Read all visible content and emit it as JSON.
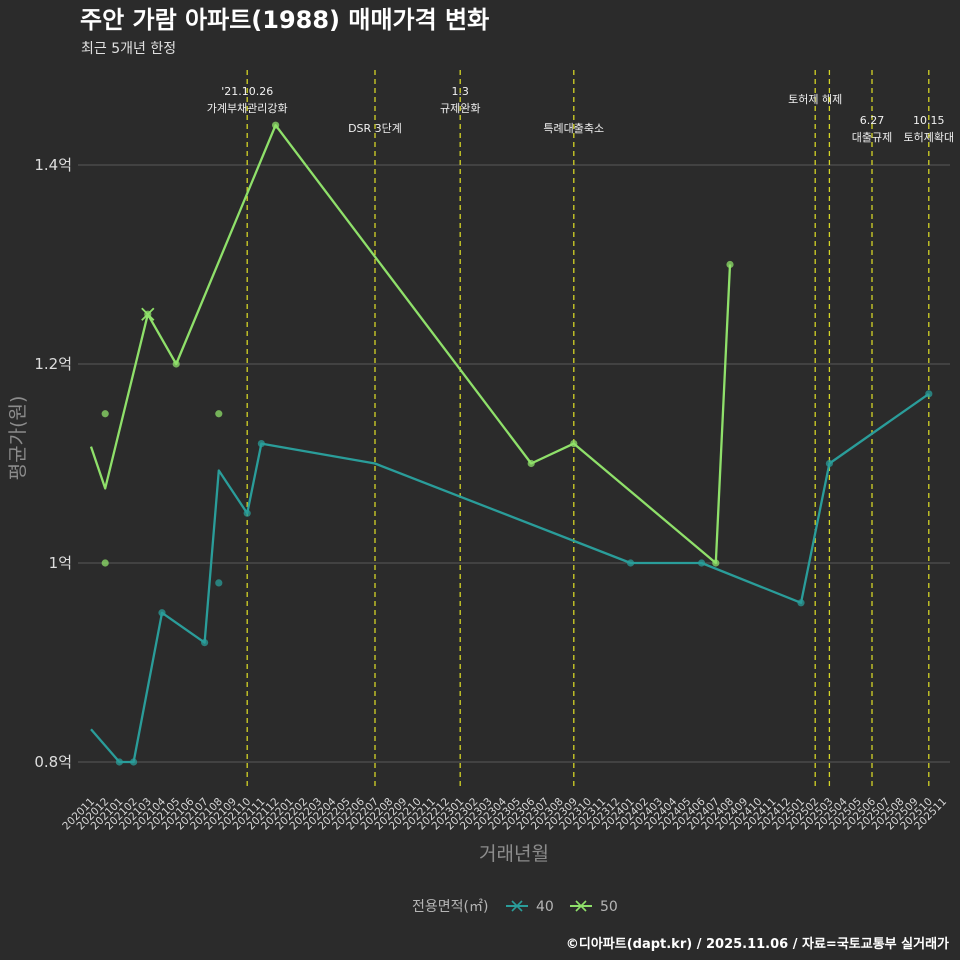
{
  "chart_data": {
    "type": "line",
    "title": "주안 가람 아파트(1988) 매매가격 변화",
    "subtitle": "최근 5개년 한정",
    "xlabel": "거래년월",
    "ylabel": "평균가(원)",
    "caption": "©디아파트(dapt.kr) / 2025.11.06 / 자료=국토교통부 실거래가",
    "legend_title": "전용면적(㎡)",
    "legend_position": "bottom",
    "ylim": [
      0.77,
      1.5
    ],
    "y_ticks": [
      0.8,
      1.0,
      1.2,
      1.4
    ],
    "y_tick_labels": [
      "0.8억",
      "1억",
      "1.2억",
      "1.4억"
    ],
    "categories": [
      "202011",
      "202012",
      "202101",
      "202102",
      "202103",
      "202104",
      "202105",
      "202106",
      "202107",
      "202108",
      "202109",
      "202110",
      "202111",
      "202112",
      "202201",
      "202202",
      "202203",
      "202204",
      "202205",
      "202206",
      "202207",
      "202208",
      "202209",
      "202210",
      "202211",
      "202212",
      "202301",
      "202302",
      "202303",
      "202304",
      "202305",
      "202306",
      "202307",
      "202308",
      "202309",
      "202310",
      "202311",
      "202312",
      "202401",
      "202402",
      "202403",
      "202404",
      "202405",
      "202406",
      "202407",
      "202408",
      "202409",
      "202410",
      "202411",
      "202412",
      "202501",
      "202502",
      "202503",
      "202504",
      "202505",
      "202506",
      "202507",
      "202508",
      "202509",
      "202510",
      "202511"
    ],
    "series": [
      {
        "name": "40",
        "color": "#2a9d9a",
        "line": [
          {
            "x": "202011",
            "y": 0.833
          },
          {
            "x": "202101",
            "y": 0.8
          },
          {
            "x": "202102",
            "y": 0.8
          },
          {
            "x": "202104",
            "y": 0.95
          },
          {
            "x": "202107",
            "y": 0.92
          },
          {
            "x": "202108",
            "y": 1.093
          },
          {
            "x": "202110",
            "y": 1.05
          },
          {
            "x": "202111",
            "y": 1.12
          },
          {
            "x": "202207",
            "y": 1.1
          },
          {
            "x": "202401",
            "y": 1.0
          },
          {
            "x": "202406",
            "y": 1.0
          },
          {
            "x": "202501",
            "y": 0.96
          },
          {
            "x": "202503",
            "y": 1.1
          },
          {
            "x": "202510",
            "y": 1.17
          }
        ],
        "points": [
          {
            "x": "202101",
            "y": 0.8
          },
          {
            "x": "202102",
            "y": 0.8
          },
          {
            "x": "202104",
            "y": 0.95
          },
          {
            "x": "202107",
            "y": 0.92
          },
          {
            "x": "202108",
            "y": 0.98
          },
          {
            "x": "202110",
            "y": 1.05
          },
          {
            "x": "202111",
            "y": 1.12
          },
          {
            "x": "202401",
            "y": 1.0
          },
          {
            "x": "202406",
            "y": 1.0
          },
          {
            "x": "202501",
            "y": 0.96
          },
          {
            "x": "202503",
            "y": 1.1
          },
          {
            "x": "202510",
            "y": 1.17
          }
        ]
      },
      {
        "name": "50",
        "color": "#8fe06a",
        "line": [
          {
            "x": "202011",
            "y": 1.117
          },
          {
            "x": "202012",
            "y": 1.075
          },
          {
            "x": "202103",
            "y": 1.25
          },
          {
            "x": "202105",
            "y": 1.2
          },
          {
            "x": "202112",
            "y": 1.44
          },
          {
            "x": "202306",
            "y": 1.1
          },
          {
            "x": "202309",
            "y": 1.12
          },
          {
            "x": "202407",
            "y": 1.0
          },
          {
            "x": "202408",
            "y": 1.3
          }
        ],
        "points": [
          {
            "x": "202012",
            "y": 1.15
          },
          {
            "x": "202012",
            "y": 1.0
          },
          {
            "x": "202103",
            "y": 1.25
          },
          {
            "x": "202105",
            "y": 1.2
          },
          {
            "x": "202108",
            "y": 1.15
          },
          {
            "x": "202112",
            "y": 1.44
          },
          {
            "x": "202306",
            "y": 1.1
          },
          {
            "x": "202309",
            "y": 1.12
          },
          {
            "x": "202407",
            "y": 1.0
          },
          {
            "x": "202408",
            "y": 1.3
          }
        ]
      }
    ],
    "events": [
      {
        "x": "202110",
        "lines": [
          "'21.10.26",
          "가계부채관리강화"
        ],
        "row": 0
      },
      {
        "x": "202207",
        "lines": [
          "DSR 3단계"
        ],
        "row": 2
      },
      {
        "x": "202301",
        "lines": [
          "1.3",
          "규제완화"
        ],
        "row": 0
      },
      {
        "x": "202309",
        "lines": [
          "특례대출축소"
        ],
        "row": 2
      },
      {
        "x": "202502",
        "lines": [
          "토허제 해제"
        ],
        "row": 1
      },
      {
        "x": "202503",
        "lines": [],
        "row": 1
      },
      {
        "x": "202506",
        "lines": [
          "6.27",
          "대출규제"
        ],
        "row": 1
      },
      {
        "x": "202510",
        "lines": [
          "10.15",
          "토허제확대"
        ],
        "row": 1
      }
    ],
    "event_line_color": "#d4d426",
    "grid": true
  }
}
